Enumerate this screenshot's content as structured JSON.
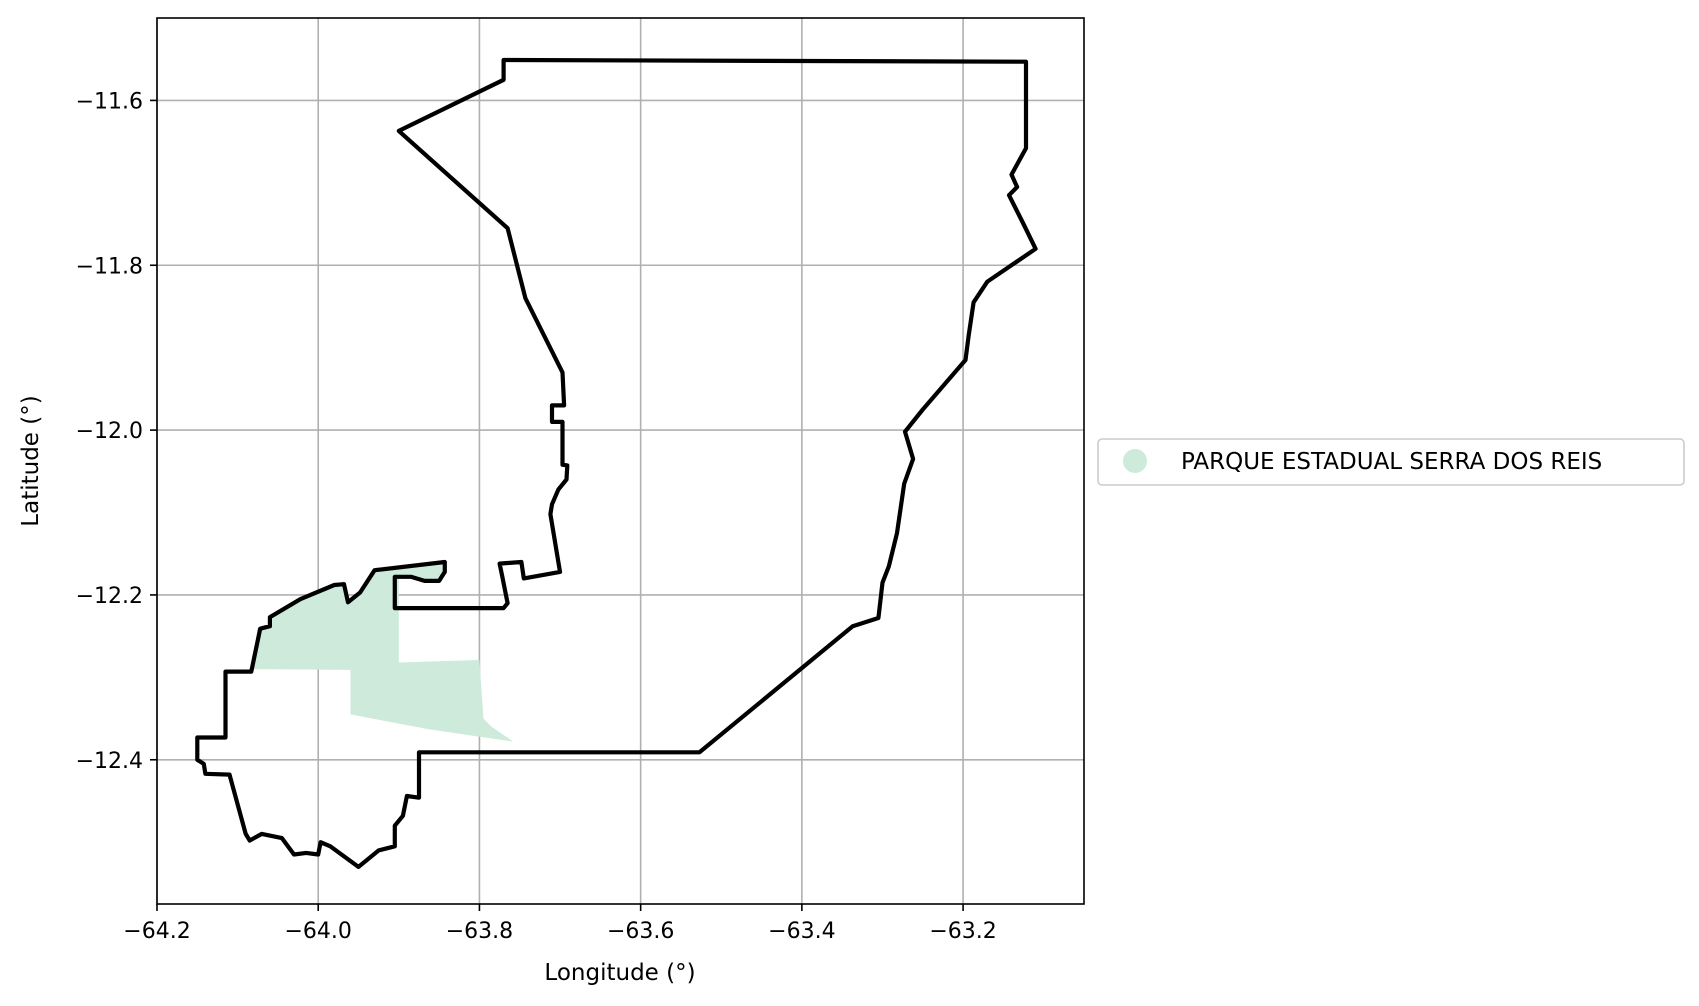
{
  "chart_data": {
    "type": "map",
    "xlabel": "Longitude (°)",
    "ylabel": "Latitude (°)",
    "xlim": [
      -64.2,
      -63.05
    ],
    "ylim": [
      -12.575,
      -11.5
    ],
    "grid": true,
    "x_ticks": [
      {
        "value": -64.2,
        "label": "−64.2"
      },
      {
        "value": -64.0,
        "label": "−64.0"
      },
      {
        "value": -63.8,
        "label": "−63.8"
      },
      {
        "value": -63.6,
        "label": "−63.6"
      },
      {
        "value": -63.4,
        "label": "−63.4"
      },
      {
        "value": -63.2,
        "label": "−63.2"
      }
    ],
    "y_ticks": [
      {
        "value": -11.6,
        "label": "−11.6"
      },
      {
        "value": -11.8,
        "label": "−11.8"
      },
      {
        "value": -12.0,
        "label": "−12.0"
      },
      {
        "value": -12.2,
        "label": "−12.2"
      },
      {
        "value": -12.4,
        "label": "−12.4"
      }
    ],
    "legend": {
      "placement": "right",
      "entries": [
        {
          "label": "PARQUE ESTADUAL SERRA DOS REIS",
          "color": "#cdeadb"
        }
      ]
    },
    "park_polygon": {
      "name": "PARQUE ESTADUAL SERRA DOS REIS",
      "color": "#cdeadb",
      "coords": [
        [
          -64.083,
          -12.29
        ],
        [
          -64.075,
          -12.24
        ],
        [
          -64.062,
          -12.238
        ],
        [
          -64.06,
          -12.225
        ],
        [
          -64.025,
          -12.205
        ],
        [
          -63.995,
          -12.195
        ],
        [
          -63.968,
          -12.183
        ],
        [
          -63.963,
          -12.209
        ],
        [
          -63.948,
          -12.197
        ],
        [
          -63.935,
          -12.172
        ],
        [
          -63.845,
          -12.16
        ],
        [
          -63.845,
          -12.174
        ],
        [
          -63.852,
          -12.185
        ],
        [
          -63.9,
          -12.178
        ],
        [
          -63.9,
          -12.282
        ],
        [
          -63.8,
          -12.279
        ],
        [
          -63.795,
          -12.35
        ],
        [
          -63.785,
          -12.36
        ],
        [
          -63.758,
          -12.378
        ],
        [
          -63.863,
          -12.363
        ],
        [
          -63.96,
          -12.345
        ],
        [
          -63.96,
          -12.291
        ]
      ]
    },
    "boundary_polygon": {
      "color": "#000000",
      "coords": [
        [
          -63.77,
          -11.551
        ],
        [
          -63.122,
          -11.553
        ],
        [
          -63.122,
          -11.658
        ],
        [
          -63.14,
          -11.69
        ],
        [
          -63.133,
          -11.705
        ],
        [
          -63.143,
          -11.715
        ],
        [
          -63.125,
          -11.75
        ],
        [
          -63.11,
          -11.78
        ],
        [
          -63.17,
          -11.82
        ],
        [
          -63.187,
          -11.845
        ],
        [
          -63.193,
          -11.885
        ],
        [
          -63.197,
          -11.915
        ],
        [
          -63.25,
          -11.975
        ],
        [
          -63.272,
          -12.002
        ],
        [
          -63.262,
          -12.035
        ],
        [
          -63.273,
          -12.065
        ],
        [
          -63.282,
          -12.125
        ],
        [
          -63.292,
          -12.165
        ],
        [
          -63.3,
          -12.185
        ],
        [
          -63.305,
          -12.228
        ],
        [
          -63.337,
          -12.238
        ],
        [
          -63.527,
          -12.391
        ],
        [
          -63.875,
          -12.391
        ],
        [
          -63.875,
          -12.446
        ],
        [
          -63.89,
          -12.444
        ],
        [
          -63.895,
          -12.468
        ],
        [
          -63.905,
          -12.48
        ],
        [
          -63.905,
          -12.505
        ],
        [
          -63.925,
          -12.51
        ],
        [
          -63.95,
          -12.53
        ],
        [
          -63.985,
          -12.505
        ],
        [
          -63.997,
          -12.5
        ],
        [
          -64.0,
          -12.515
        ],
        [
          -64.015,
          -12.513
        ],
        [
          -64.03,
          -12.515
        ],
        [
          -64.045,
          -12.495
        ],
        [
          -64.07,
          -12.49
        ],
        [
          -64.085,
          -12.498
        ],
        [
          -64.09,
          -12.49
        ],
        [
          -64.11,
          -12.418
        ],
        [
          -64.14,
          -12.417
        ],
        [
          -64.142,
          -12.405
        ],
        [
          -64.15,
          -12.4
        ],
        [
          -64.15,
          -12.373
        ],
        [
          -64.115,
          -12.373
        ],
        [
          -64.115,
          -12.293
        ],
        [
          -64.083,
          -12.293
        ],
        [
          -64.072,
          -12.241
        ],
        [
          -64.06,
          -12.238
        ],
        [
          -64.06,
          -12.227
        ],
        [
          -64.022,
          -12.205
        ],
        [
          -63.98,
          -12.188
        ],
        [
          -63.968,
          -12.187
        ],
        [
          -63.963,
          -12.209
        ],
        [
          -63.948,
          -12.197
        ],
        [
          -63.93,
          -12.17
        ],
        [
          -63.843,
          -12.16
        ],
        [
          -63.843,
          -12.172
        ],
        [
          -63.85,
          -12.183
        ],
        [
          -63.868,
          -12.183
        ],
        [
          -63.885,
          -12.178
        ],
        [
          -63.905,
          -12.178
        ],
        [
          -63.905,
          -12.216
        ],
        [
          -63.77,
          -12.216
        ],
        [
          -63.765,
          -12.21
        ],
        [
          -63.772,
          -12.176
        ],
        [
          -63.775,
          -12.162
        ],
        [
          -63.748,
          -12.16
        ],
        [
          -63.745,
          -12.18
        ],
        [
          -63.7,
          -12.172
        ],
        [
          -63.712,
          -12.102
        ],
        [
          -63.71,
          -12.09
        ],
        [
          -63.702,
          -12.072
        ],
        [
          -63.692,
          -12.06
        ],
        [
          -63.691,
          -12.043
        ],
        [
          -63.697,
          -12.042
        ],
        [
          -63.697,
          -11.99
        ],
        [
          -63.71,
          -11.99
        ],
        [
          -63.71,
          -11.97
        ],
        [
          -63.695,
          -11.97
        ],
        [
          -63.697,
          -11.93
        ],
        [
          -63.743,
          -11.84
        ],
        [
          -63.765,
          -11.755
        ],
        [
          -63.9,
          -11.637
        ],
        [
          -63.77,
          -11.575
        ]
      ]
    }
  }
}
